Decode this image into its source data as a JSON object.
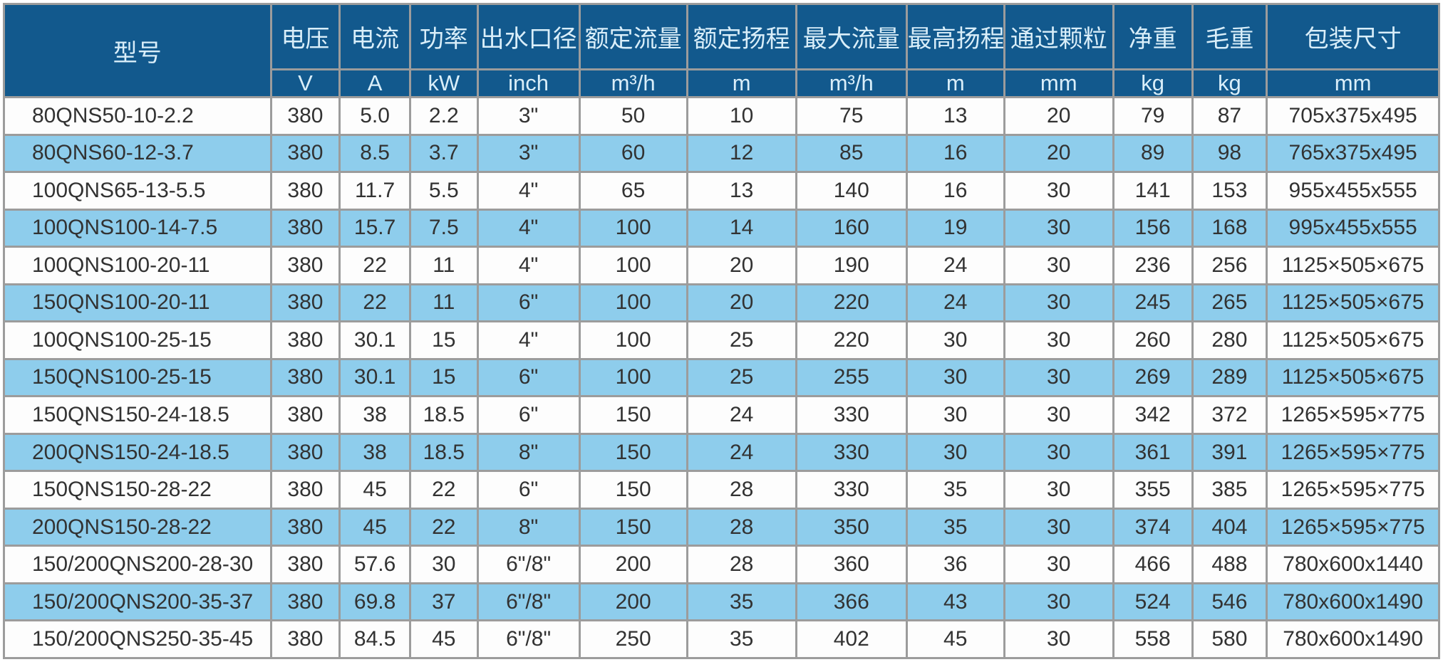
{
  "colors": {
    "header_bg": "#12598d",
    "header_text": "#d9eef9",
    "row_bg": "#fdfdfd",
    "row_alt_bg": "#8ecdec",
    "grid_line": "#9c9c9c",
    "cell_text": "#323232"
  },
  "table": {
    "columns": [
      {
        "key": "model",
        "label": "型号",
        "unit": null
      },
      {
        "key": "voltage",
        "label": "电压",
        "unit": "V"
      },
      {
        "key": "current",
        "label": "电流",
        "unit": "A"
      },
      {
        "key": "power",
        "label": "功率",
        "unit": "kW"
      },
      {
        "key": "outlet",
        "label": "出水口径",
        "unit": "inch"
      },
      {
        "key": "rated-flow",
        "label": "额定流量",
        "unit": "m³/h"
      },
      {
        "key": "rated-head",
        "label": "额定扬程",
        "unit": "m"
      },
      {
        "key": "max-flow",
        "label": "最大流量",
        "unit": "m³/h"
      },
      {
        "key": "max-head",
        "label": "最高扬程",
        "unit": "m"
      },
      {
        "key": "particle",
        "label": "通过颗粒",
        "unit": "mm"
      },
      {
        "key": "net-weight",
        "label": "净重",
        "unit": "kg"
      },
      {
        "key": "gross-weight",
        "label": "毛重",
        "unit": "kg"
      },
      {
        "key": "package-size",
        "label": "包装尺寸",
        "unit": "mm"
      }
    ],
    "rows": [
      [
        "80QNS50-10-2.2",
        "380",
        "5.0",
        "2.2",
        "3\"",
        "50",
        "10",
        "75",
        "13",
        "20",
        "79",
        "87",
        "705x375x495"
      ],
      [
        "80QNS60-12-3.7",
        "380",
        "8.5",
        "3.7",
        "3\"",
        "60",
        "12",
        "85",
        "16",
        "20",
        "89",
        "98",
        "765x375x495"
      ],
      [
        "100QNS65-13-5.5",
        "380",
        "11.7",
        "5.5",
        "4\"",
        "65",
        "13",
        "140",
        "16",
        "30",
        "141",
        "153",
        "955x455x555"
      ],
      [
        "100QNS100-14-7.5",
        "380",
        "15.7",
        "7.5",
        "4\"",
        "100",
        "14",
        "160",
        "19",
        "30",
        "156",
        "168",
        "995x455x555"
      ],
      [
        "100QNS100-20-11",
        "380",
        "22",
        "11",
        "4\"",
        "100",
        "20",
        "190",
        "24",
        "30",
        "236",
        "256",
        "1125×505×675"
      ],
      [
        "150QNS100-20-11",
        "380",
        "22",
        "11",
        "6\"",
        "100",
        "20",
        "220",
        "24",
        "30",
        "245",
        "265",
        "1125×505×675"
      ],
      [
        "100QNS100-25-15",
        "380",
        "30.1",
        "15",
        "4\"",
        "100",
        "25",
        "220",
        "30",
        "30",
        "260",
        "280",
        "1125×505×675"
      ],
      [
        "150QNS100-25-15",
        "380",
        "30.1",
        "15",
        "6\"",
        "100",
        "25",
        "255",
        "30",
        "30",
        "269",
        "289",
        "1125×505×675"
      ],
      [
        "150QNS150-24-18.5",
        "380",
        "38",
        "18.5",
        "6\"",
        "150",
        "24",
        "330",
        "30",
        "30",
        "342",
        "372",
        "1265×595×775"
      ],
      [
        "200QNS150-24-18.5",
        "380",
        "38",
        "18.5",
        "8\"",
        "150",
        "24",
        "330",
        "30",
        "30",
        "361",
        "391",
        "1265×595×775"
      ],
      [
        "150QNS150-28-22",
        "380",
        "45",
        "22",
        "6\"",
        "150",
        "28",
        "330",
        "35",
        "30",
        "355",
        "385",
        "1265×595×775"
      ],
      [
        "200QNS150-28-22",
        "380",
        "45",
        "22",
        "8\"",
        "150",
        "28",
        "350",
        "35",
        "30",
        "374",
        "404",
        "1265×595×775"
      ],
      [
        "150/200QNS200-28-30",
        "380",
        "57.6",
        "30",
        "6\"/8\"",
        "200",
        "28",
        "360",
        "36",
        "30",
        "466",
        "488",
        "780x600x1440"
      ],
      [
        "150/200QNS200-35-37",
        "380",
        "69.8",
        "37",
        "6\"/8\"",
        "200",
        "35",
        "366",
        "43",
        "30",
        "524",
        "546",
        "780x600x1490"
      ],
      [
        "150/200QNS250-35-45",
        "380",
        "84.5",
        "45",
        "6\"/8\"",
        "250",
        "35",
        "402",
        "45",
        "30",
        "558",
        "580",
        "780x600x1490"
      ]
    ]
  }
}
